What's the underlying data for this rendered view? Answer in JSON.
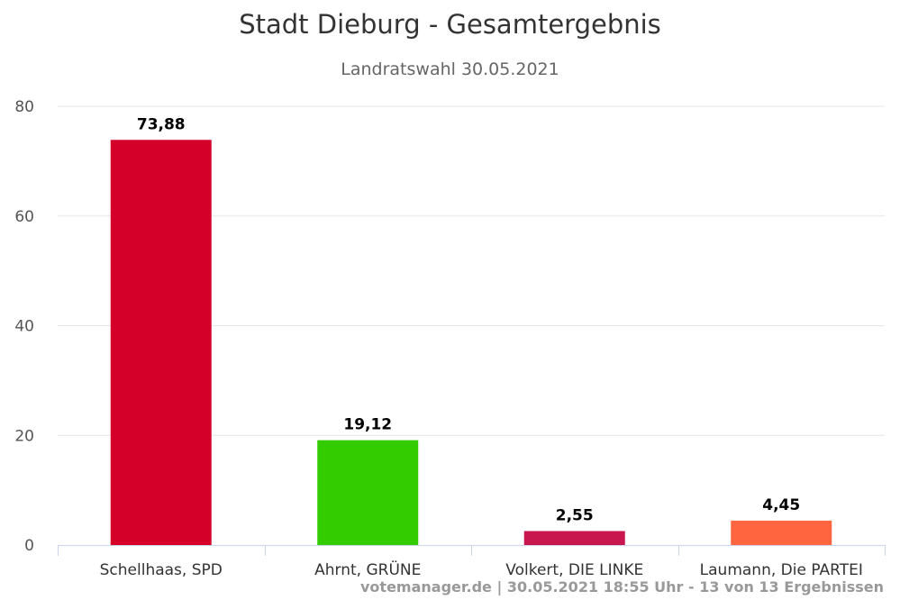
{
  "chart_data": {
    "type": "bar",
    "title": "Stadt Dieburg - Gesamtergebnis",
    "subtitle": "Landratswahl 30.05.2021",
    "categories": [
      "Schellhaas, SPD",
      "Ahrnt, GRÜNE",
      "Volkert, DIE LINKE",
      "Laumann, Die PARTEI"
    ],
    "values": [
      73.88,
      19.12,
      2.55,
      4.45
    ],
    "value_labels": [
      "73,88",
      "19,12",
      "2,55",
      "4,45"
    ],
    "colors": [
      "#d4002a",
      "#33cc00",
      "#c8174e",
      "#ff6640"
    ],
    "ylim": [
      0,
      80
    ],
    "yticks": [
      0,
      20,
      40,
      60,
      80
    ],
    "grid": true,
    "xlabel": "",
    "ylabel": ""
  },
  "credits": "votemanager.de | 30.05.2021 18:55 Uhr - 13 von 13 Ergebnissen"
}
